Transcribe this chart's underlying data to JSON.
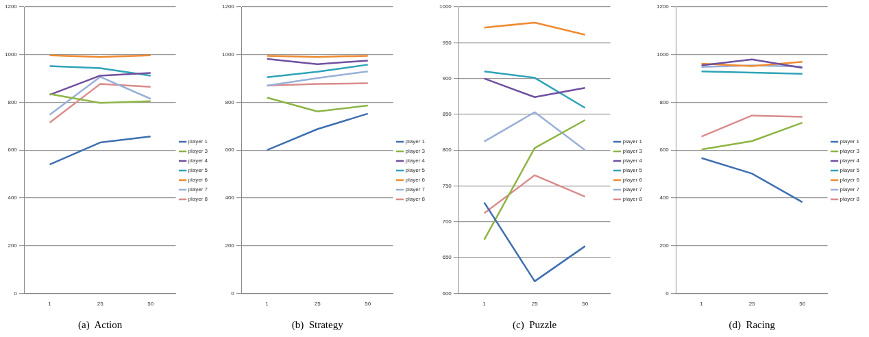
{
  "chart_data": [
    {
      "type": "line",
      "xlabel": "(a)  Action",
      "categories": [
        "1",
        "25",
        "50"
      ],
      "ylim": [
        0,
        1200
      ],
      "yticks": [
        0,
        200,
        400,
        600,
        800,
        1000,
        1200
      ],
      "grid": "y",
      "legend": "right",
      "marker": "none",
      "line_style": "solid",
      "series": [
        {
          "name": "player 1",
          "color": "#3f6fb0",
          "values": [
            540,
            632,
            657
          ]
        },
        {
          "name": "player 3",
          "color": "#8db545",
          "values": [
            835,
            798,
            805
          ]
        },
        {
          "name": "player 4",
          "color": "#7050a0",
          "values": [
            832,
            912,
            923
          ]
        },
        {
          "name": "player 5",
          "color": "#2ea3b8",
          "values": [
            952,
            943,
            912
          ]
        },
        {
          "name": "player 6",
          "color": "#f08a30",
          "values": [
            997,
            990,
            997
          ]
        },
        {
          "name": "player 7",
          "color": "#98b0d8",
          "values": [
            748,
            907,
            815
          ]
        },
        {
          "name": "player 8",
          "color": "#d98c8a",
          "values": [
            715,
            877,
            865
          ]
        }
      ]
    },
    {
      "type": "line",
      "xlabel": "(b)  Strategy",
      "categories": [
        "1",
        "25",
        "50"
      ],
      "ylim": [
        0,
        1200
      ],
      "yticks": [
        0,
        200,
        400,
        600,
        800,
        1000,
        1200
      ],
      "grid": "y",
      "legend": "right",
      "marker": "none",
      "line_style": "solid",
      "series": [
        {
          "name": "player 1",
          "color": "#3f6fb0",
          "values": [
            600,
            688,
            753
          ]
        },
        {
          "name": "player 3",
          "color": "#8db545",
          "values": [
            820,
            762,
            787
          ]
        },
        {
          "name": "player 4",
          "color": "#7050a0",
          "values": [
            982,
            960,
            975
          ]
        },
        {
          "name": "player 5",
          "color": "#2ea3b8",
          "values": [
            905,
            928,
            958
          ]
        },
        {
          "name": "player 6",
          "color": "#f08a30",
          "values": [
            995,
            990,
            995
          ]
        },
        {
          "name": "player 7",
          "color": "#98b0d8",
          "values": [
            870,
            902,
            930
          ]
        },
        {
          "name": "player 8",
          "color": "#d98c8a",
          "values": [
            870,
            877,
            880
          ]
        }
      ]
    },
    {
      "type": "line",
      "xlabel": "(c)  Puzzle",
      "categories": [
        "1",
        "25",
        "50"
      ],
      "ylim": [
        600,
        1000
      ],
      "yticks": [
        600,
        650,
        700,
        750,
        800,
        850,
        900,
        950,
        1000
      ],
      "grid": "y",
      "legend": "right",
      "marker": "none",
      "line_style": "solid",
      "series": [
        {
          "name": "player 1",
          "color": "#3f6fb0",
          "values": [
            727,
            617,
            666
          ]
        },
        {
          "name": "player 3",
          "color": "#8db545",
          "values": [
            675,
            803,
            842
          ]
        },
        {
          "name": "player 4",
          "color": "#7050a0",
          "values": [
            900,
            874,
            887
          ]
        },
        {
          "name": "player 5",
          "color": "#2ea3b8",
          "values": [
            910,
            901,
            859
          ]
        },
        {
          "name": "player 6",
          "color": "#f08a30",
          "values": [
            971,
            978,
            961
          ]
        },
        {
          "name": "player 7",
          "color": "#98b0d8",
          "values": [
            812,
            853,
            800
          ]
        },
        {
          "name": "player 8",
          "color": "#d98c8a",
          "values": [
            712,
            765,
            735
          ]
        }
      ]
    },
    {
      "type": "line",
      "xlabel": "(d)  Racing",
      "categories": [
        "1",
        "25",
        "50"
      ],
      "ylim": [
        0,
        1200
      ],
      "yticks": [
        0,
        200,
        400,
        600,
        800,
        1000,
        1200
      ],
      "grid": "y",
      "legend": "right",
      "marker": "none",
      "line_style": "solid",
      "series": [
        {
          "name": "player 1",
          "color": "#3f6fb0",
          "values": [
            567,
            502,
            382
          ]
        },
        {
          "name": "player 3",
          "color": "#8db545",
          "values": [
            603,
            638,
            715
          ]
        },
        {
          "name": "player 4",
          "color": "#7050a0",
          "values": [
            955,
            980,
            945
          ]
        },
        {
          "name": "player 5",
          "color": "#2ea3b8",
          "values": [
            930,
            925,
            920
          ]
        },
        {
          "name": "player 6",
          "color": "#f08a30",
          "values": [
            962,
            952,
            970
          ]
        },
        {
          "name": "player 7",
          "color": "#98b0d8",
          "values": [
            948,
            955,
            950
          ]
        },
        {
          "name": "player 8",
          "color": "#d98c8a",
          "values": [
            657,
            745,
            740
          ]
        }
      ]
    }
  ]
}
